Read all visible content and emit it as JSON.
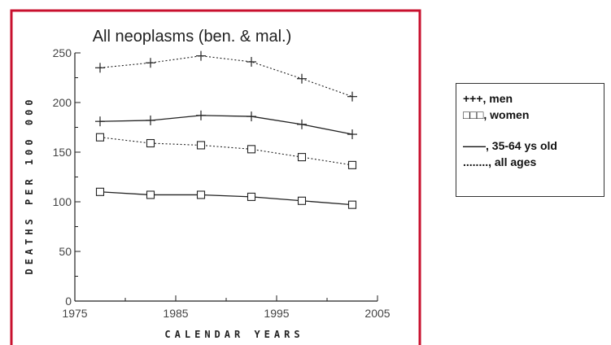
{
  "chart_data": {
    "type": "line",
    "title": "All neoplasms (ben. & mal.)",
    "xlabel": "CALENDAR YEARS",
    "ylabel": "DEATHS PER 100 000",
    "xlim": [
      1975,
      2005
    ],
    "ylim": [
      0,
      250
    ],
    "xticks": [
      1975,
      1985,
      1995,
      2005
    ],
    "yticks": [
      0,
      50,
      100,
      150,
      200,
      250
    ],
    "x": [
      1977.5,
      1982.5,
      1987.5,
      1992.5,
      1997.5,
      2002.5
    ],
    "series": [
      {
        "sex": "men",
        "ages": "all ages",
        "marker": "plus",
        "line": "dotted",
        "values": [
          235,
          240,
          247,
          241,
          224,
          206
        ]
      },
      {
        "sex": "men",
        "ages": "35-64 ys old",
        "marker": "plus",
        "line": "solid",
        "values": [
          181,
          182,
          187,
          186,
          178,
          168
        ]
      },
      {
        "sex": "women",
        "ages": "all ages",
        "marker": "square",
        "line": "dotted",
        "values": [
          165,
          159,
          157,
          153,
          145,
          137
        ]
      },
      {
        "sex": "women",
        "ages": "35-64 ys old",
        "marker": "square",
        "line": "solid",
        "values": [
          110,
          107,
          107,
          105,
          101,
          97
        ]
      }
    ],
    "grid": false,
    "legend_placement": "right, outside plot"
  },
  "legend": {
    "men": "+++, men",
    "women": "□□□, women",
    "solid": "——, 35-64 ys old",
    "dotted": "........, all ages"
  },
  "colors": {
    "frame": "#c8102e",
    "ink": "#222222"
  }
}
